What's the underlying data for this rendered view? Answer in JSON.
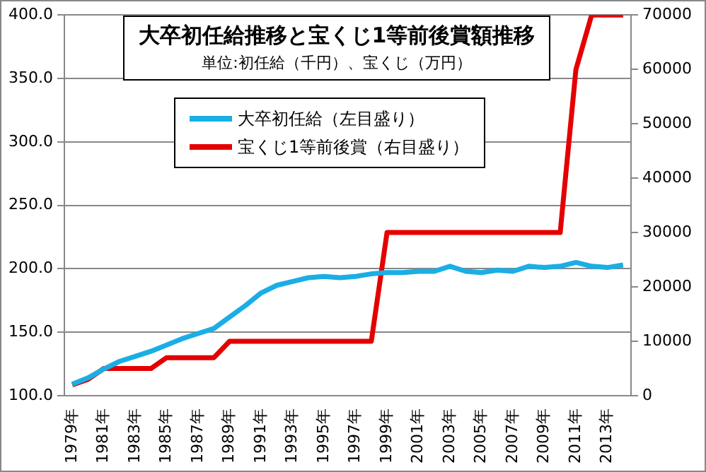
{
  "chart_data": {
    "type": "line",
    "title": "大卒初任給推移と宝くじ1等前後賞額推移",
    "subtitle": "単位:初任給（千円）、宝くじ（万円）",
    "categories": [
      "1979年",
      null,
      "1981年",
      null,
      "1983年",
      null,
      "1985年",
      null,
      "1987年",
      null,
      "1989年",
      null,
      "1991年",
      null,
      "1993年",
      null,
      "1995年",
      null,
      "1997年",
      null,
      "1999年",
      null,
      "2001年",
      null,
      "2003年",
      null,
      "2005年",
      null,
      "2007年",
      null,
      "2009年",
      null,
      "2011年",
      null,
      "2013年",
      null
    ],
    "series": [
      {
        "name": "大卒初任給（左目盛り）",
        "color": "#1aaee5",
        "values": [
          109,
          114,
          121,
          127,
          131,
          135,
          140,
          145,
          149,
          153,
          162,
          171,
          181,
          187,
          190,
          193,
          194,
          193,
          194,
          196,
          197,
          197,
          198,
          198,
          202,
          198,
          197,
          199,
          198,
          202,
          201,
          202,
          205,
          202,
          201,
          203
        ]
      },
      {
        "name": "宝くじ1等前後賞（右目盛り）",
        "color": "#e50000",
        "axis": "y2",
        "values": [
          2000,
          3000,
          5000,
          5000,
          5000,
          5000,
          7000,
          7000,
          7000,
          7000,
          10000,
          10000,
          10000,
          10000,
          10000,
          10000,
          10000,
          10000,
          10000,
          10000,
          30000,
          30000,
          30000,
          30000,
          30000,
          30000,
          30000,
          30000,
          30000,
          30000,
          30000,
          30000,
          60000,
          70000,
          70000,
          70000
        ]
      }
    ],
    "ylim": [
      100,
      400
    ],
    "yticks": [
      {
        "value": 100,
        "label": "100.0"
      },
      {
        "value": 150,
        "label": "150.0"
      },
      {
        "value": 200,
        "label": "200.0"
      },
      {
        "value": 250,
        "label": "250.0"
      },
      {
        "value": 300,
        "label": "300.0"
      },
      {
        "value": 350,
        "label": "350.0"
      },
      {
        "value": 400,
        "label": "400.0"
      }
    ],
    "y2lim": [
      0,
      70000
    ],
    "y2ticks": [
      0,
      10000,
      20000,
      30000,
      40000,
      50000,
      60000,
      70000
    ],
    "grid": "y",
    "legend": "top",
    "marker": "none",
    "line_style": "solid"
  }
}
